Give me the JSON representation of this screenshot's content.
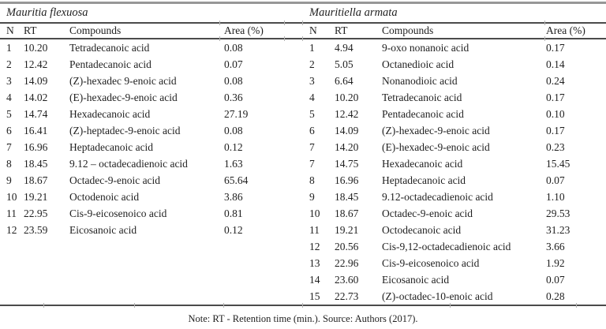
{
  "page": {
    "note": "Note: RT - Retention time (min.). Source: Authors (2017)."
  },
  "colors": {
    "text": "#1f1f1f",
    "rule": "#4b4b4b",
    "rule_top": "#979797",
    "tick": "#b5b5b5",
    "background": "#ffffff"
  },
  "tables": [
    {
      "species": "Mauritia flexuosa",
      "columns": [
        "N",
        "RT",
        "Compounds",
        "Area (%)"
      ],
      "rows": [
        {
          "n": "1",
          "rt": "10.20",
          "compound": "Tetradecanoic acid",
          "area": "0.08"
        },
        {
          "n": "2",
          "rt": "12.42",
          "compound": "Pentadecanoic acid",
          "area": "0.07"
        },
        {
          "n": "3",
          "rt": "14.09",
          "compound": "(Z)-hexadec 9-enoic acid",
          "area": "0.08"
        },
        {
          "n": "4",
          "rt": "14.02",
          "compound": "(E)-hexadec-9-enoic acid",
          "area": "0.36"
        },
        {
          "n": "5",
          "rt": "14.74",
          "compound": "Hexadecanoic acid",
          "area": "27.19"
        },
        {
          "n": "6",
          "rt": "16.41",
          "compound": "(Z)-heptadec-9-enoic acid",
          "area": "0.08"
        },
        {
          "n": "7",
          "rt": "16.96",
          "compound": "Heptadecanoic acid",
          "area": "0.12"
        },
        {
          "n": "8",
          "rt": "18.45",
          "compound": "9.12 – octadecadienoic acid",
          "area": "1.63"
        },
        {
          "n": "9",
          "rt": "18.67",
          "compound": "Octadec-9-enoic acid",
          "area": "65.64"
        },
        {
          "n": "10",
          "rt": "19.21",
          "compound": "Octodenoic acid",
          "area": "3.86"
        },
        {
          "n": "11",
          "rt": "22.95",
          "compound": "Cis-9-eicosenoico acid",
          "area": "0.81"
        },
        {
          "n": "12",
          "rt": "23.59",
          "compound": "Eicosanoic acid",
          "area": "0.12"
        }
      ]
    },
    {
      "species": "Mauritiella armata",
      "columns": [
        "N",
        "RT",
        "Compounds",
        "Area (%)"
      ],
      "rows": [
        {
          "n": "1",
          "rt": "4.94",
          "compound": "9-oxo nonanoic acid",
          "area": "0.17"
        },
        {
          "n": "2",
          "rt": "5.05",
          "compound": "Octanedioic acid",
          "area": "0.14"
        },
        {
          "n": "3",
          "rt": "6.64",
          "compound": "Nonanodioic acid",
          "area": "0.24"
        },
        {
          "n": "4",
          "rt": "10.20",
          "compound": "Tetradecanoic acid",
          "area": "0.17"
        },
        {
          "n": "5",
          "rt": "12.42",
          "compound": "Pentadecanoic acid",
          "area": "0.10"
        },
        {
          "n": "6",
          "rt": "14.09",
          "compound": "(Z)-hexadec-9-enoic acid",
          "area": "0.17"
        },
        {
          "n": "7",
          "rt": "14.20",
          "compound": "(E)-hexadec-9-enoic acid",
          "area": "0.23"
        },
        {
          "n": "7",
          "rt": "14.75",
          "compound": "Hexadecanoic acid",
          "area": "15.45"
        },
        {
          "n": "8",
          "rt": "16.96",
          "compound": "Heptadecanoic acid",
          "area": "0.07"
        },
        {
          "n": "9",
          "rt": "18.45",
          "compound": "9.12-octadecadienoic acid",
          "area": "1.10"
        },
        {
          "n": "10",
          "rt": "18.67",
          "compound": "Octadec-9-enoic acid",
          "area": "29.53"
        },
        {
          "n": "11",
          "rt": "19.21",
          "compound": "Octodecanoic acid",
          "area": "31.23"
        },
        {
          "n": "12",
          "rt": "20.56",
          "compound": "Cis-9,12-octadecadienoic acid",
          "area": "3.66"
        },
        {
          "n": "13",
          "rt": "22.96",
          "compound": "Cis-9-eicosenoico acid",
          "area": "1.92"
        },
        {
          "n": "14",
          "rt": "23.60",
          "compound": "Eicosanoic acid",
          "area": "0.07"
        },
        {
          "n": "15",
          "rt": "22.73",
          "compound": "(Z)-octadec-10-enoic acid",
          "area": "0.28"
        }
      ]
    }
  ]
}
